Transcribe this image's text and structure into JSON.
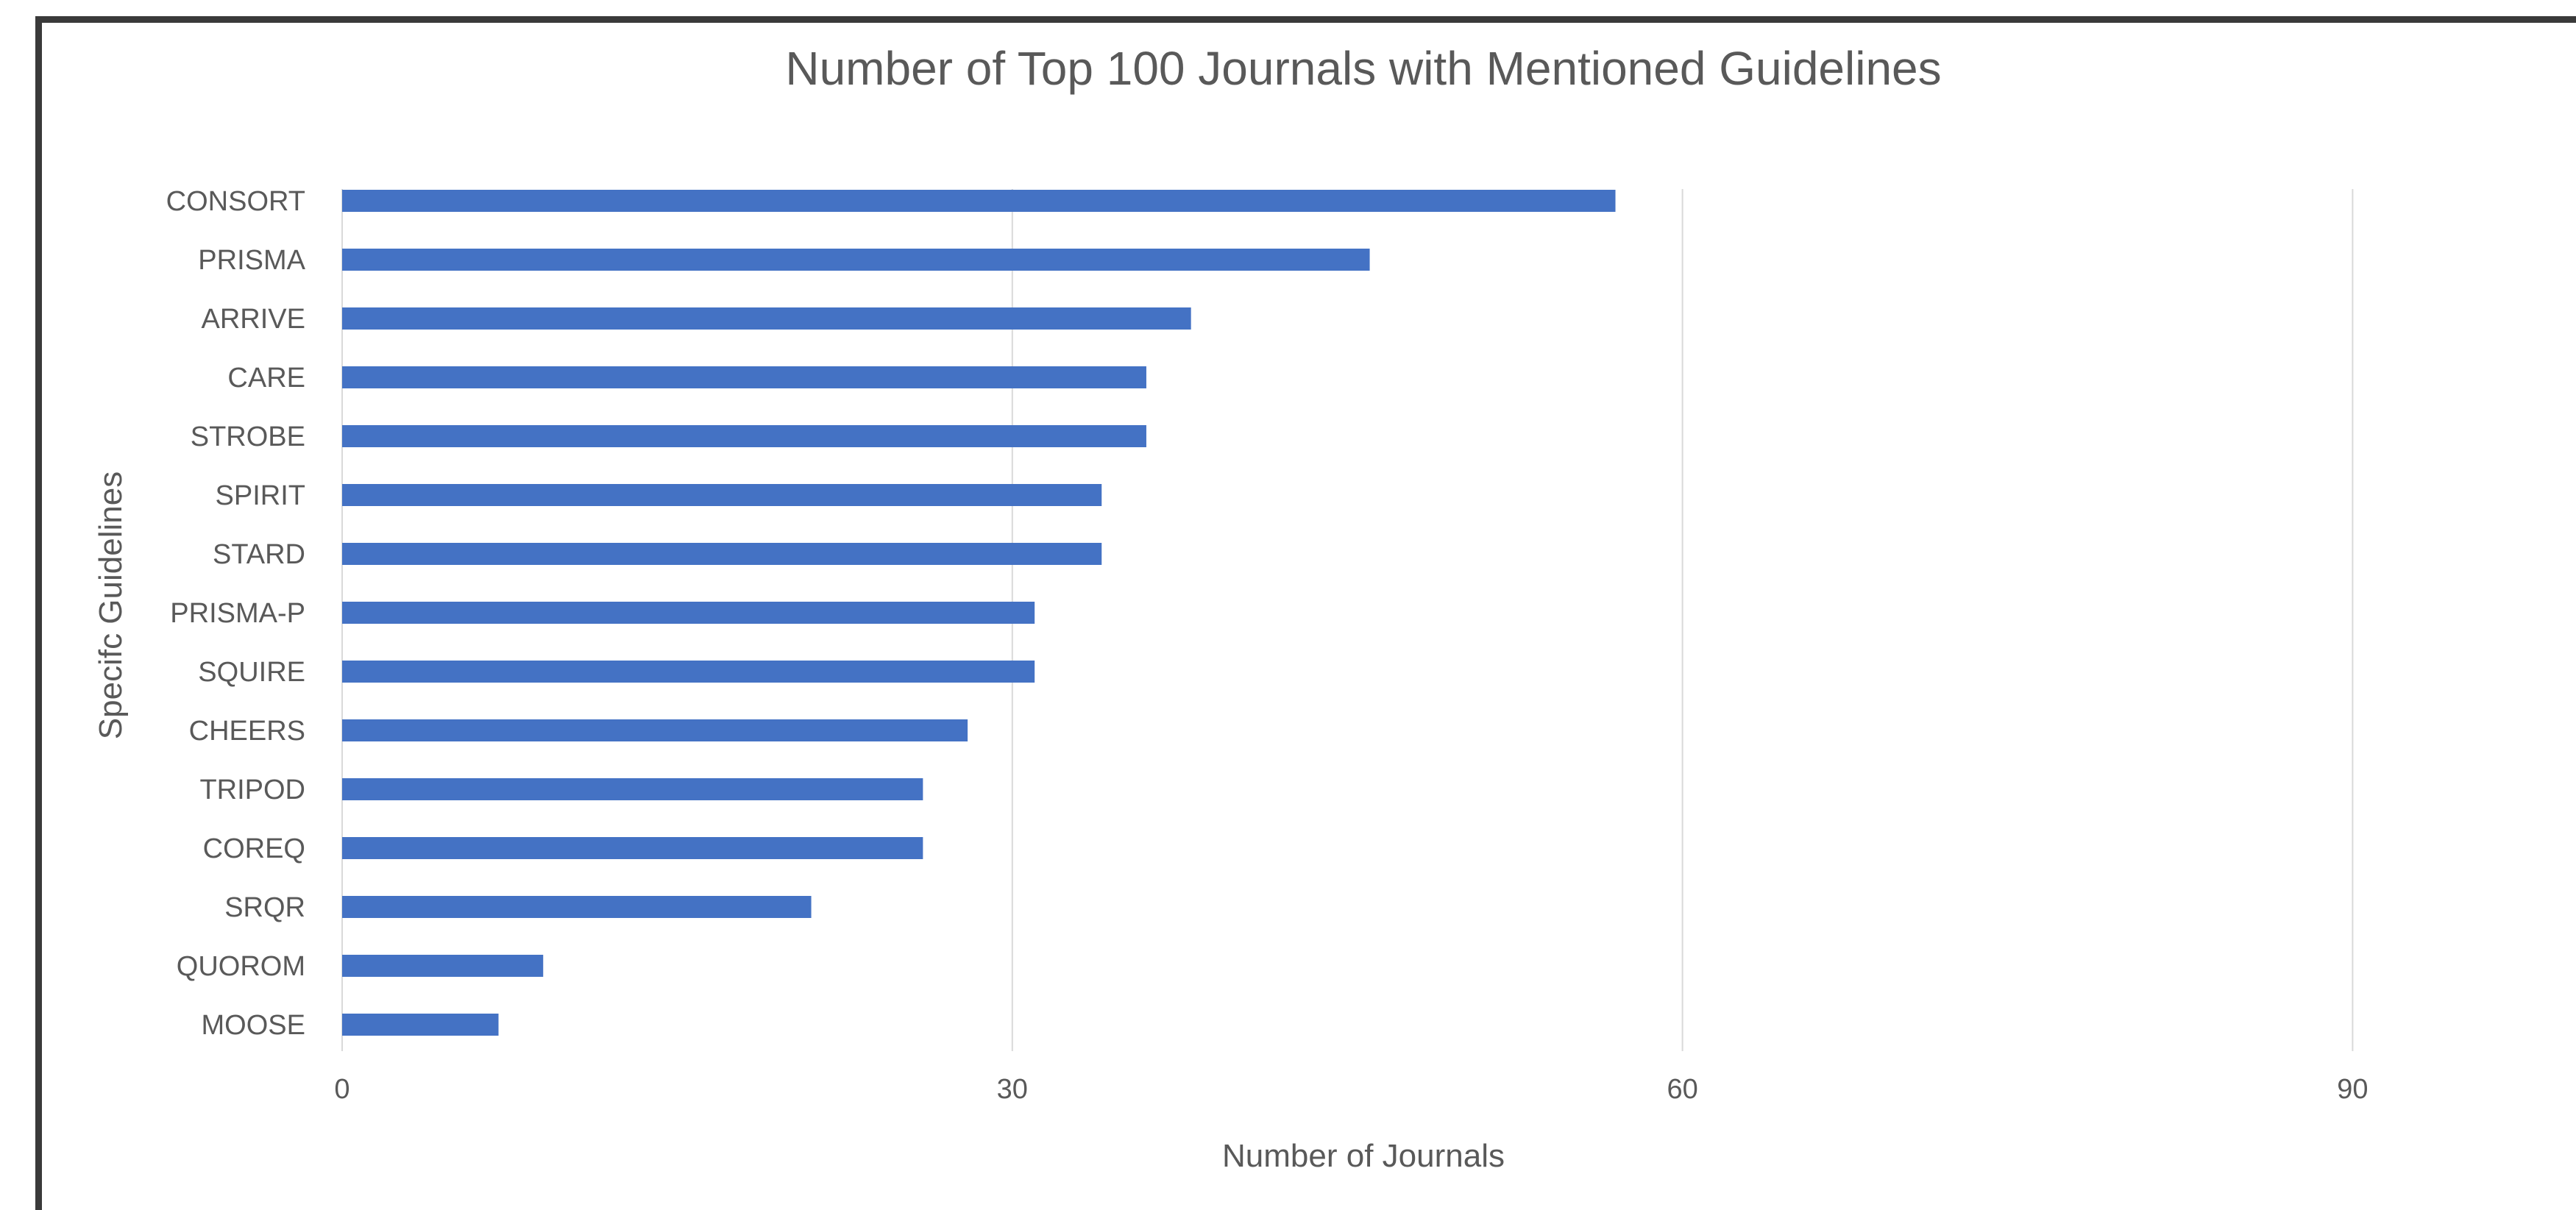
{
  "chart_data": {
    "type": "bar",
    "orientation": "horizontal",
    "title": "Number of Top 100 Journals with Mentioned Guidelines",
    "xlabel": "Number of Journals",
    "ylabel": "Specifc Guidelines",
    "xlim": [
      0,
      100
    ],
    "xticks": [
      0,
      30,
      60,
      90
    ],
    "grid": true,
    "legend": "none",
    "bar_color": "#4472C4",
    "categories": [
      "CONSORT",
      "PRISMA",
      "ARRIVE",
      "CARE",
      "STROBE",
      "SPIRIT",
      "STARD",
      "PRISMA-P",
      "SQUIRE",
      "CHEERS",
      "TRIPOD",
      "COREQ",
      "SRQR",
      "QUOROM",
      "MOOSE"
    ],
    "values": [
      57,
      46,
      38,
      36,
      36,
      34,
      34,
      31,
      31,
      28,
      26,
      26,
      21,
      9,
      7
    ]
  }
}
